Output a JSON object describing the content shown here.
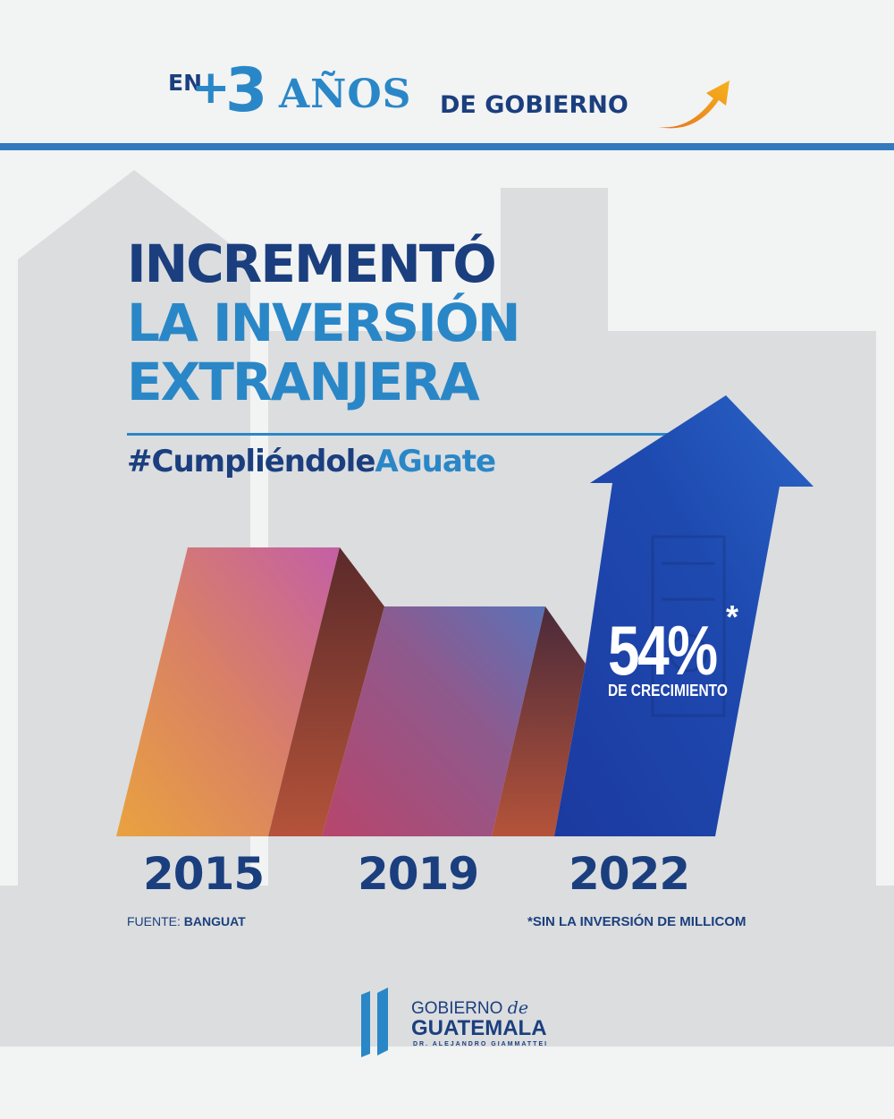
{
  "header": {
    "prefix": "EN",
    "plus": "+",
    "number": "3",
    "years": "AÑOS",
    "suffix": "DE GOBIERNO"
  },
  "title": {
    "line1": "INCREMENTÓ",
    "line2": "LA INVERSIÓN",
    "line3": "EXTRANJERA"
  },
  "hashtag": {
    "part1": "#Cumpliéndole",
    "part2": "AGuate"
  },
  "stat": {
    "value": "54%",
    "asterisk": "*",
    "label": "DE CRECIMIENTO"
  },
  "years": [
    "2015",
    "2019",
    "2022"
  ],
  "source": {
    "label": "FUENTE:",
    "name": "BANGUAT"
  },
  "footnote": "*SIN LA INVERSIÓN DE MILLICOM",
  "logo": {
    "line1": "GOBIERNO",
    "line1_de": "de",
    "line2": "GUATEMALA",
    "line3": "DR. ALEJANDRO GIAMMATTEI"
  },
  "colors": {
    "navy": "#1b3f7e",
    "blue": "#2a87c7",
    "rule": "#3279bd"
  }
}
